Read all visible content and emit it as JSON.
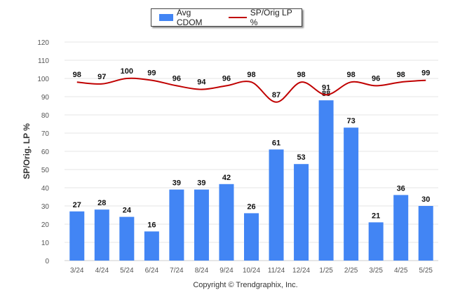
{
  "chart_data": {
    "type": "bar",
    "categories": [
      "3/24",
      "4/24",
      "5/24",
      "6/24",
      "7/24",
      "8/24",
      "9/24",
      "10/24",
      "11/24",
      "12/24",
      "1/25",
      "2/25",
      "3/25",
      "4/25",
      "5/25"
    ],
    "series": [
      {
        "name": "Avg CDOM",
        "type": "bar",
        "color": "#4285f4",
        "values": [
          27,
          28,
          24,
          16,
          39,
          39,
          42,
          26,
          61,
          53,
          88,
          73,
          21,
          36,
          30
        ]
      },
      {
        "name": "SP/Orig LP %",
        "type": "line",
        "color": "#c00000",
        "values": [
          98,
          97,
          100,
          99,
          96,
          94,
          96,
          98,
          87,
          98,
          91,
          98,
          96,
          98,
          99
        ]
      }
    ],
    "ylabel": "SP/Orig. LP %",
    "ylim": [
      0,
      120
    ],
    "yticks": [
      0,
      10,
      20,
      30,
      40,
      50,
      60,
      70,
      80,
      90,
      100,
      110,
      120
    ],
    "grid": true,
    "legend_position": "top-center"
  },
  "copyright": "Copyright © Trendgraphix, Inc."
}
